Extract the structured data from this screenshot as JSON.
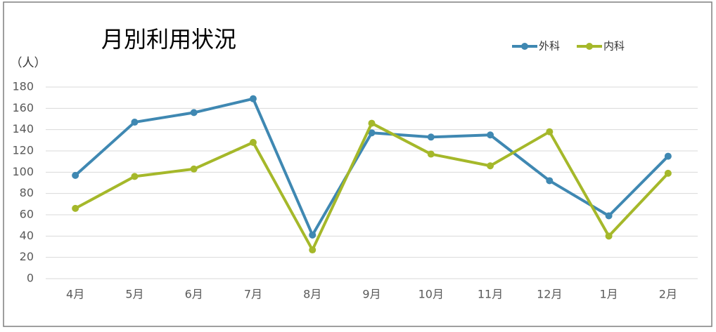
{
  "chart_data": {
    "type": "line",
    "title": "月別利用状況",
    "y_label": "（人）",
    "categories": [
      "4月",
      "5月",
      "6月",
      "7月",
      "8月",
      "9月",
      "10月",
      "11月",
      "12月",
      "1月",
      "2月"
    ],
    "series": [
      {
        "name": "外科",
        "color": "#3f88b2",
        "values": [
          97,
          147,
          156,
          169,
          41,
          137,
          133,
          135,
          92,
          59,
          115
        ]
      },
      {
        "name": "内科",
        "color": "#a5b82a",
        "values": [
          66,
          96,
          103,
          128,
          27,
          146,
          117,
          106,
          138,
          40,
          99
        ]
      }
    ],
    "ylim": [
      0,
      180
    ],
    "yticks": [
      0,
      20,
      40,
      60,
      80,
      100,
      120,
      140,
      160,
      180
    ],
    "grid": true,
    "legend": "top-right"
  }
}
